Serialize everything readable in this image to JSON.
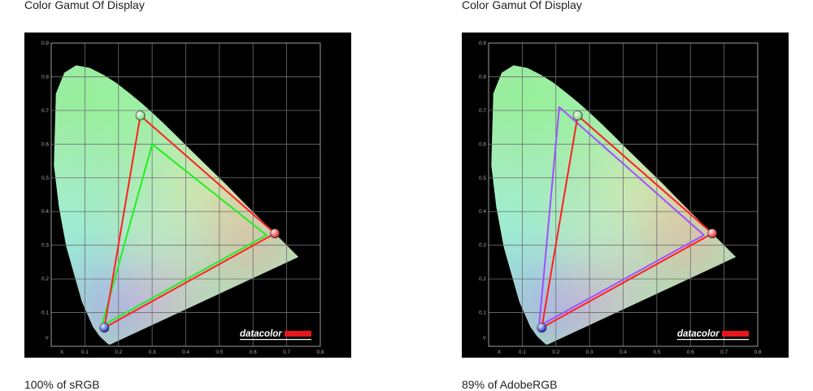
{
  "panels": [
    {
      "title": "Color Gamut Of Display",
      "caption": "100% of sRGB",
      "chart_data": {
        "type": "scatter",
        "brand": "datacolor",
        "xlim": [
          0,
          0.8
        ],
        "ylim": [
          0,
          0.9
        ],
        "x_ticks": [
          "X",
          "0.1",
          "0.2",
          "0.3",
          "0.4",
          "0.5",
          "0.6",
          "0.7",
          "0.8"
        ],
        "y_ticks": [
          "Y",
          "0.1",
          "0.2",
          "0.3",
          "0.4",
          "0.5",
          "0.6",
          "0.7",
          "0.8",
          "0.9"
        ],
        "grid": true,
        "series": [
          {
            "color": "#ff2020",
            "points": [
              [
                0.265,
                0.685
              ],
              [
                0.665,
                0.335
              ],
              [
                0.158,
                0.055
              ]
            ],
            "markers": true
          },
          {
            "color": "#22ee22",
            "points": [
              [
                0.3,
                0.6
              ],
              [
                0.64,
                0.33
              ],
              [
                0.15,
                0.06
              ]
            ],
            "markers": false
          }
        ]
      }
    },
    {
      "title": "Color Gamut Of Display",
      "caption": "89% of AdobeRGB",
      "chart_data": {
        "type": "scatter",
        "brand": "datacolor",
        "xlim": [
          0,
          0.8
        ],
        "ylim": [
          0,
          0.9
        ],
        "x_ticks": [
          "X",
          "0.1",
          "0.2",
          "0.3",
          "0.4",
          "0.5",
          "0.6",
          "0.7",
          "0.8"
        ],
        "y_ticks": [
          "Y",
          "0.1",
          "0.2",
          "0.3",
          "0.4",
          "0.5",
          "0.6",
          "0.7",
          "0.8",
          "0.9"
        ],
        "grid": true,
        "series": [
          {
            "color": "#ff2020",
            "points": [
              [
                0.265,
                0.685
              ],
              [
                0.665,
                0.335
              ],
              [
                0.158,
                0.055
              ]
            ],
            "markers": true
          },
          {
            "color": "#a050ff",
            "points": [
              [
                0.21,
                0.71
              ],
              [
                0.64,
                0.33
              ],
              [
                0.15,
                0.06
              ]
            ],
            "markers": false
          }
        ]
      }
    }
  ]
}
